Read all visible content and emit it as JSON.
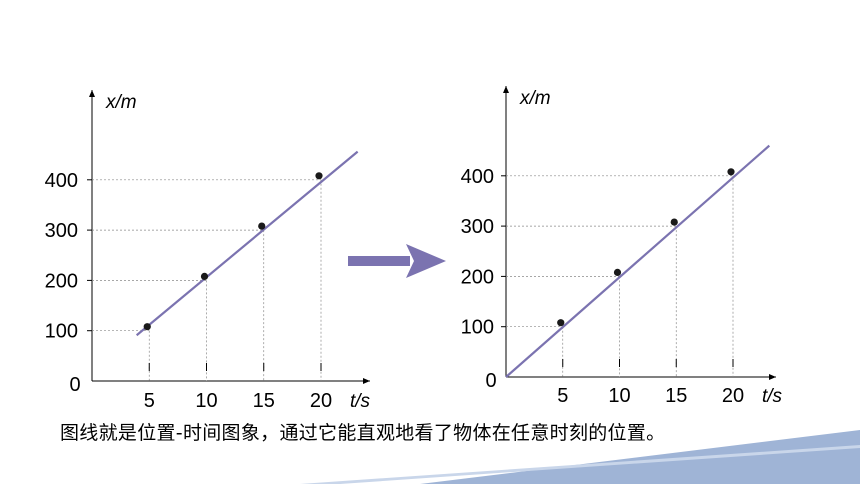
{
  "caption": "图线就是位置-时间图象，通过它能直观地看了物体在任意时刻的位置。",
  "colors": {
    "line": "#7b73b0",
    "arrow": "#7b73b0",
    "point": "#1a1a1a",
    "guide": "#8a8a8a",
    "accent_band": "#9fb4d6"
  },
  "chart_data": [
    {
      "type": "line",
      "title": "",
      "xlabel": "t/s",
      "ylabel": "x/m",
      "x": [
        5,
        10,
        15,
        20
      ],
      "y": [
        100,
        200,
        300,
        400
      ],
      "xticks": [
        "5",
        "10",
        "15",
        "20"
      ],
      "yticks": [
        "100",
        "200",
        "300",
        "400"
      ],
      "origin_label": "0",
      "line_through_origin": false,
      "guide_lines": true
    },
    {
      "type": "line",
      "title": "",
      "xlabel": "t/s",
      "ylabel": "x/m",
      "x": [
        5,
        10,
        15,
        20
      ],
      "y": [
        100,
        200,
        300,
        400
      ],
      "xticks": [
        "5",
        "10",
        "15",
        "20"
      ],
      "yticks": [
        "100",
        "200",
        "300",
        "400"
      ],
      "origin_label": "0",
      "line_through_origin": true,
      "guide_lines": true
    }
  ]
}
